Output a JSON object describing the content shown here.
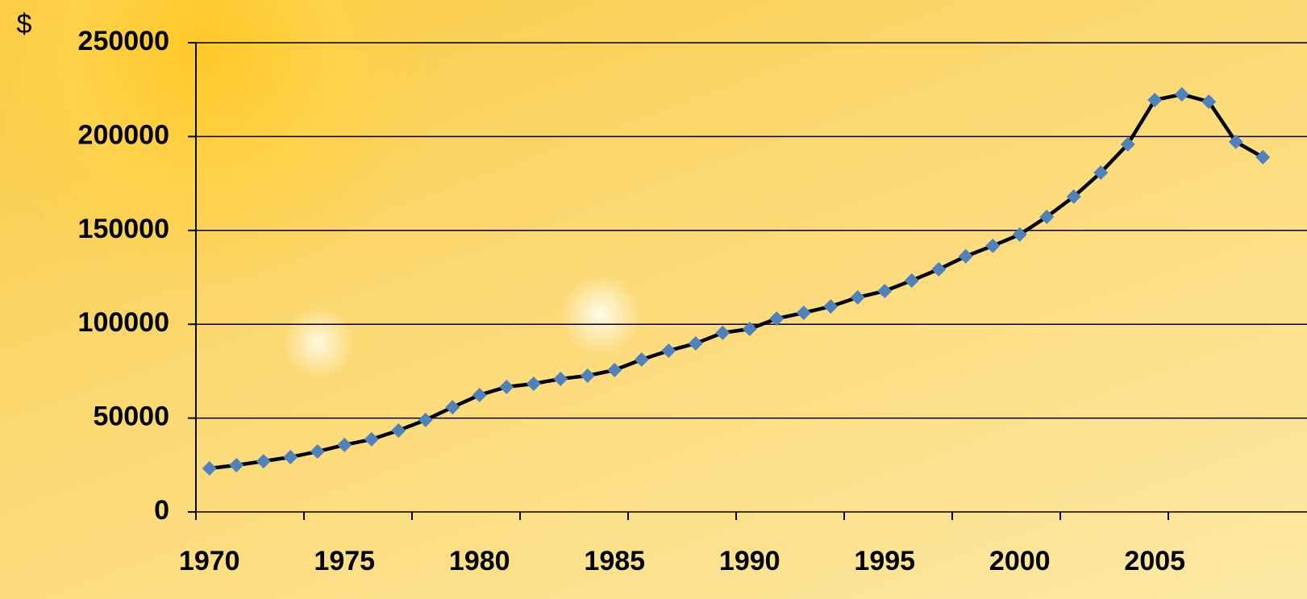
{
  "chart_data": {
    "type": "line",
    "y_label": "$",
    "categories": [
      "1970",
      null,
      null,
      null,
      null,
      "1975",
      null,
      null,
      null,
      null,
      "1980",
      null,
      null,
      null,
      null,
      "1985",
      null,
      null,
      null,
      null,
      "1990",
      null,
      null,
      null,
      null,
      "1995",
      null,
      null,
      null,
      null,
      "2000",
      null,
      null,
      null,
      null,
      "2005",
      null,
      null,
      null,
      null
    ],
    "series": [
      {
        "color": "#4f81bd",
        "line_color": "#000000",
        "values": [
          23200,
          24900,
          27000,
          29200,
          32200,
          35700,
          38700,
          43400,
          49000,
          55800,
          62300,
          66600,
          68300,
          70900,
          72600,
          75600,
          81200,
          85900,
          89800,
          95400,
          97500,
          103000,
          106100,
          109500,
          114300,
          117700,
          123300,
          129300,
          136200,
          141800,
          147800,
          157200,
          168000,
          180800,
          195900,
          219500,
          222500,
          218600,
          197200,
          189000
        ]
      }
    ],
    "ylim": [
      0,
      250000
    ],
    "yticks": [
      0,
      50000,
      100000,
      150000,
      200000,
      250000
    ],
    "grid": true
  }
}
